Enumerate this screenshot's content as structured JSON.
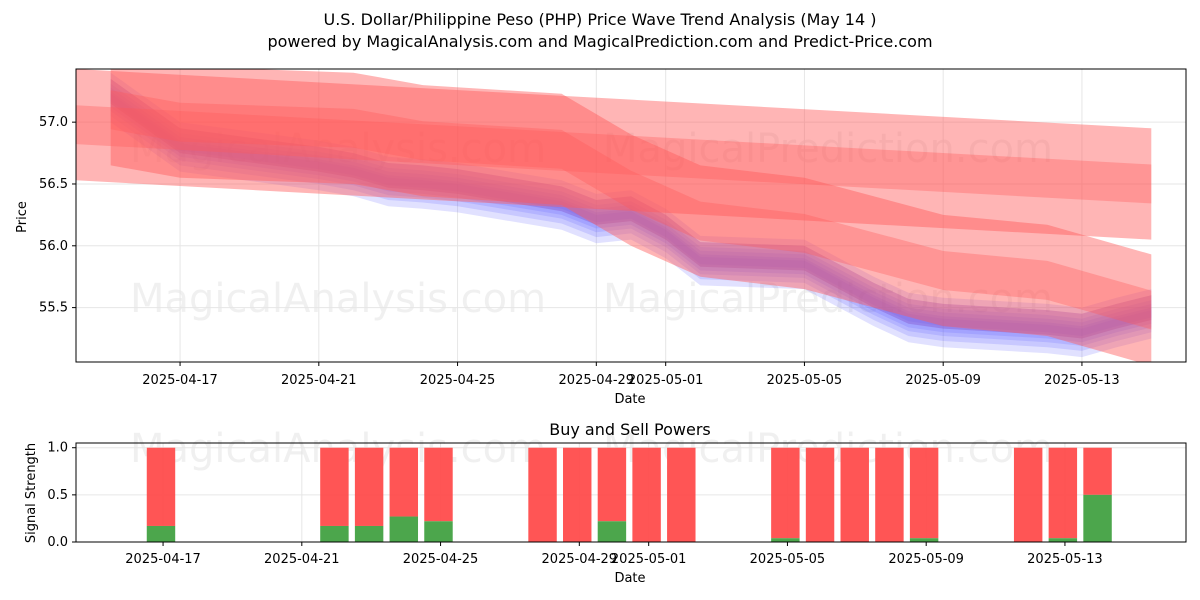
{
  "title": "U.S. Dollar/Philippine Peso (PHP) Price Wave Trend Analysis (May 14 )",
  "subtitle": "powered by MagicalAnalysis.com and MagicalPrediction.com and Predict-Price.com",
  "watermarks": [
    "MagicalAnalysis.com",
    "MagicalPrediction.com"
  ],
  "colors": {
    "buy": "#4ca64c",
    "sell": "#ff4c4c",
    "wave_blue": "#5a5aff",
    "wave_red": "#ff5a5a"
  },
  "chart_data": [
    {
      "type": "area",
      "name": "price-wave",
      "xlabel": "Date",
      "ylabel": "Price",
      "x_ticks": [
        "2025-04-17",
        "2025-04-21",
        "2025-04-25",
        "2025-04-29",
        "2025-05-01",
        "2025-05-05",
        "2025-05-09",
        "2025-05-13"
      ],
      "y_ticks": [
        "55.5",
        "56.0",
        "56.5",
        "57.0"
      ],
      "xlim": [
        "2025-04-14",
        "2025-05-16"
      ],
      "ylim": [
        55.06,
        57.43
      ],
      "grid": true,
      "series": [
        {
          "color": "blue",
          "x": [
            "2025-04-15",
            "2025-04-17",
            "2025-04-21",
            "2025-04-22",
            "2025-04-23",
            "2025-04-24",
            "2025-04-25",
            "2025-04-28",
            "2025-04-29",
            "2025-04-30",
            "2025-05-01",
            "2025-05-02",
            "2025-05-05",
            "2025-05-06",
            "2025-05-07",
            "2025-05-08",
            "2025-05-09",
            "2025-05-12",
            "2025-05-13",
            "2025-05-14",
            "2025-05-15"
          ],
          "values": [
            57.2,
            56.8,
            56.65,
            56.6,
            56.52,
            56.5,
            56.47,
            56.33,
            56.22,
            56.25,
            56.1,
            55.88,
            55.85,
            55.7,
            55.55,
            55.42,
            55.38,
            55.33,
            55.3,
            55.38,
            55.45
          ],
          "band": 0.12
        },
        {
          "color": "red",
          "x": [
            "2025-04-14",
            "2025-05-15"
          ],
          "values": [
            56.98,
            56.5
          ],
          "band": 0.45
        },
        {
          "color": "red",
          "x": [
            "2025-04-15",
            "2025-04-17",
            "2025-04-22",
            "2025-04-24",
            "2025-04-28",
            "2025-04-30",
            "2025-05-02",
            "2025-05-05",
            "2025-05-09",
            "2025-05-12",
            "2025-05-15"
          ],
          "values": [
            57.1,
            57.0,
            56.95,
            56.85,
            56.78,
            56.45,
            56.2,
            56.1,
            55.8,
            55.72,
            55.48
          ],
          "band": 0.45
        }
      ]
    },
    {
      "type": "bar",
      "name": "buy-sell-powers",
      "title": "Buy and Sell Powers",
      "xlabel": "Date",
      "ylabel": "Signal Strength",
      "x_ticks": [
        "2025-04-17",
        "2025-04-21",
        "2025-04-25",
        "2025-04-29",
        "2025-05-01",
        "2025-05-05",
        "2025-05-09",
        "2025-05-13"
      ],
      "y_ticks": [
        "0.0",
        "0.5",
        "1.0"
      ],
      "ylim": [
        0,
        1.05
      ],
      "grid": true,
      "series": [
        {
          "name": "buy",
          "color": "green"
        },
        {
          "name": "sell",
          "color": "red"
        }
      ],
      "bars": [
        {
          "date": "2025-04-16",
          "buy": 0.17
        },
        {
          "date": "2025-04-21",
          "buy": 0.17
        },
        {
          "date": "2025-04-22",
          "buy": 0.17
        },
        {
          "date": "2025-04-23",
          "buy": 0.27
        },
        {
          "date": "2025-04-24",
          "buy": 0.22
        },
        {
          "date": "2025-04-27",
          "buy": 0.0
        },
        {
          "date": "2025-04-28",
          "buy": 0.0
        },
        {
          "date": "2025-04-29",
          "buy": 0.22
        },
        {
          "date": "2025-04-30",
          "buy": 0.0
        },
        {
          "date": "2025-05-01",
          "buy": 0.0
        },
        {
          "date": "2025-05-04",
          "buy": 0.04
        },
        {
          "date": "2025-05-05",
          "buy": 0.0
        },
        {
          "date": "2025-05-06",
          "buy": 0.0
        },
        {
          "date": "2025-05-07",
          "buy": 0.0
        },
        {
          "date": "2025-05-08",
          "buy": 0.04
        },
        {
          "date": "2025-05-11",
          "buy": 0.0
        },
        {
          "date": "2025-05-12",
          "buy": 0.04
        },
        {
          "date": "2025-05-13",
          "buy": 0.5
        }
      ]
    }
  ]
}
